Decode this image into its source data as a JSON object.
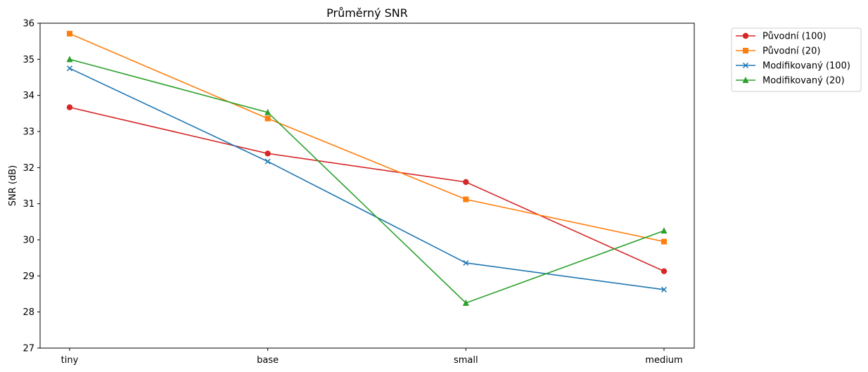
{
  "chart_data": {
    "type": "line",
    "title": "Průměrný SNR",
    "xlabel": "",
    "ylabel": "SNR (dB)",
    "categories": [
      "tiny",
      "base",
      "small",
      "medium"
    ],
    "ylim": [
      27,
      36
    ],
    "yticks": [
      27,
      28,
      29,
      30,
      31,
      32,
      33,
      34,
      35,
      36
    ],
    "grid": false,
    "legend_position": "outside-top-right",
    "series": [
      {
        "name": "Původní (100)",
        "color": "#d62728",
        "marker": "circle",
        "values": [
          33.67,
          32.39,
          31.6,
          29.13
        ]
      },
      {
        "name": "Původní (20)",
        "color": "#ff7f0e",
        "marker": "square",
        "values": [
          35.71,
          33.36,
          31.12,
          29.95
        ]
      },
      {
        "name": "Modifikovaný (100)",
        "color": "#1f77b4",
        "marker": "x",
        "values": [
          34.75,
          32.17,
          29.36,
          28.62
        ]
      },
      {
        "name": "Modifikovaný (20)",
        "color": "#2ca02c",
        "marker": "triangle",
        "values": [
          35.0,
          33.53,
          28.25,
          30.25
        ]
      }
    ]
  }
}
